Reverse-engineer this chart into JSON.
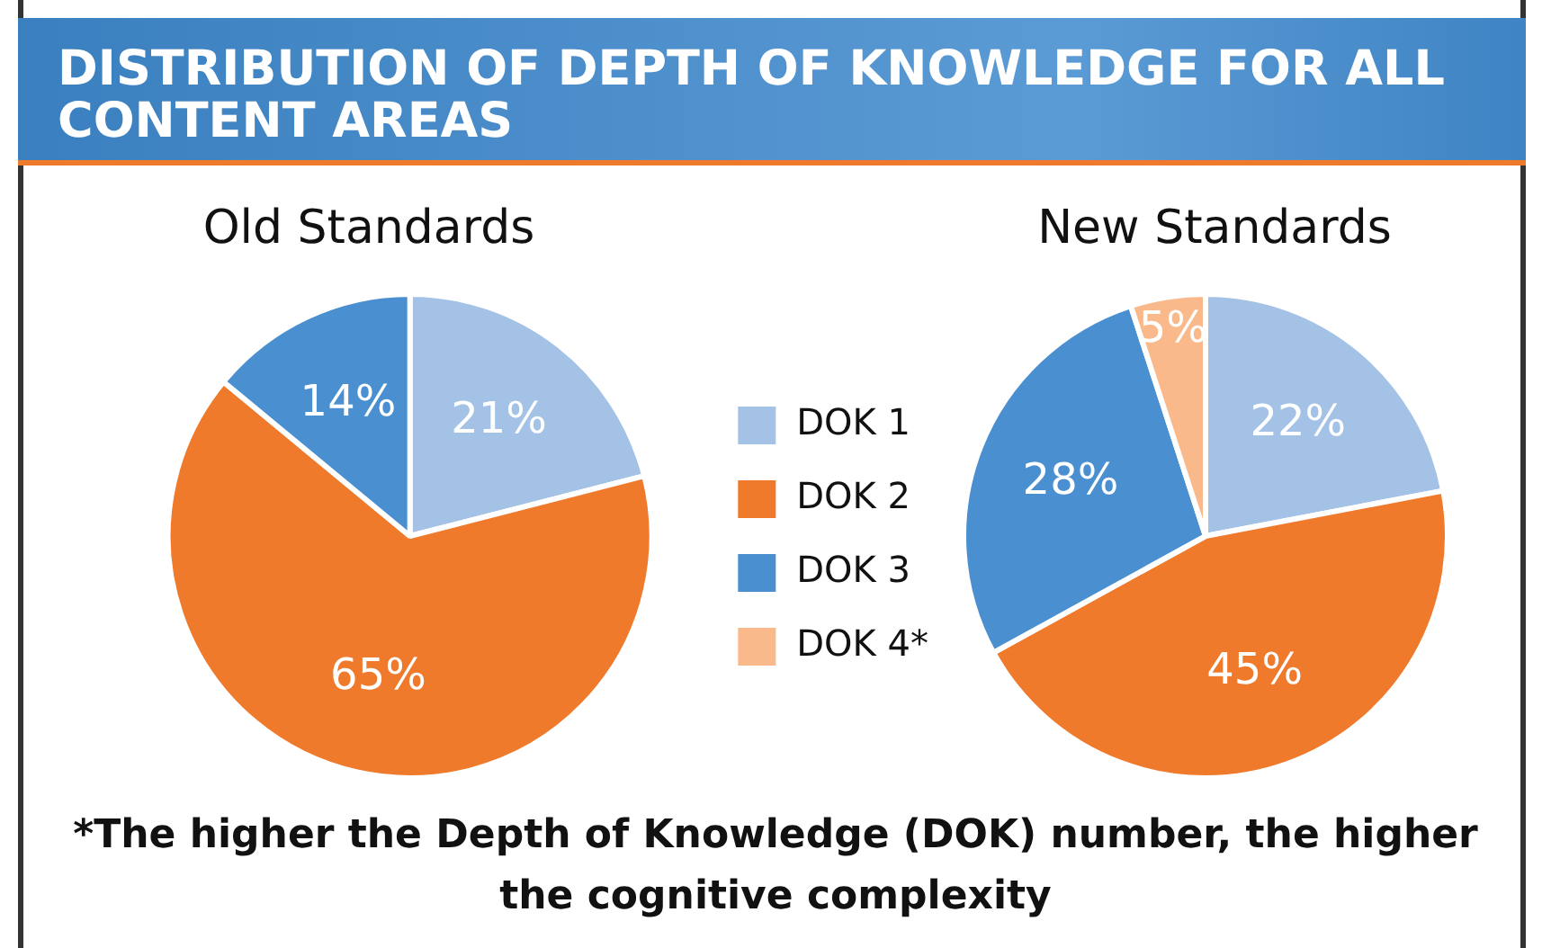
{
  "chart_data": [
    {
      "type": "other",
      "title": "DISTRIBUTION OF DEPTH OF KNOWLEDGE FOR ALL CONTENT AREAS",
      "annotations": [
        "*The higher the Depth of Knowledge (DOK) number, the higher the cognitive complexity"
      ]
    },
    {
      "type": "pie",
      "categories": [
        "DOK 1",
        "DOK 2",
        "DOK 3",
        "DOK 4*"
      ],
      "colors": [
        "#a4c2e6",
        "#f07a2c",
        "#4a90d0",
        "#f9b98a"
      ],
      "legend": "right",
      "series": [
        {
          "name": "Old Standards",
          "values": [
            21,
            65,
            14,
            0
          ],
          "value_labels": [
            "21%",
            "65%",
            "14%",
            null
          ]
        },
        {
          "name": "New Standards",
          "values": [
            22,
            45,
            28,
            5
          ],
          "value_labels": [
            "22%",
            "45%",
            "28%",
            "5%"
          ]
        }
      ]
    }
  ]
}
